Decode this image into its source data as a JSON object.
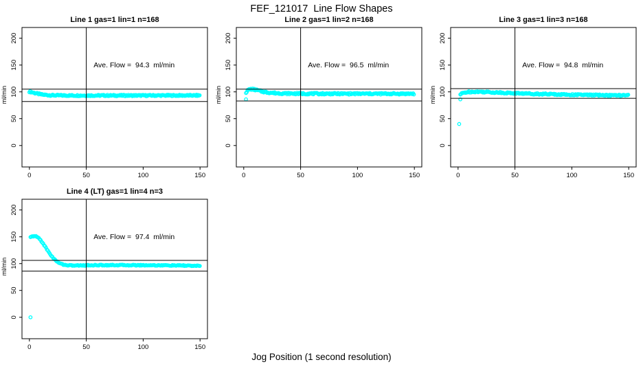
{
  "page": {
    "title": "FEF_121017  Line Flow Shapes",
    "xlabel": "Jog Position (1 second resolution)"
  },
  "colors": {
    "marker": "#00FFFF",
    "axis": "#000000",
    "background": "#FFFFFF"
  },
  "chart_data": [
    {
      "type": "scatter",
      "title": "Line 1 gas=1 lin=1 n=168",
      "annotation": "Ave. Flow =  94.3  ml/min",
      "ave_flow_ml_min": 94.3,
      "ylabel": "ml/min",
      "xticks": [
        0,
        50,
        100,
        150
      ],
      "yticks": [
        0,
        50,
        100,
        150,
        200
      ],
      "axis_range_x": [
        0,
        150
      ],
      "axis_range_y": [
        0,
        200
      ],
      "ref_hlines": [
        105,
        82
      ],
      "ref_vline": 50,
      "series": [
        {
          "name": "flow-band",
          "spread": 1.3,
          "step": 0.68,
          "points": [
            [
              0,
              100.5
            ],
            [
              1,
              100
            ],
            [
              2,
              99.5
            ],
            [
              3,
              99
            ],
            [
              4,
              98.3
            ],
            [
              5,
              97.7
            ],
            [
              6,
              97.2
            ],
            [
              8,
              96.2
            ],
            [
              10,
              95.3
            ],
            [
              12,
              94.7
            ],
            [
              15,
              94.2
            ],
            [
              18,
              93.8
            ],
            [
              20,
              93.6
            ],
            [
              25,
              93.4
            ],
            [
              30,
              93.3
            ],
            [
              40,
              93.2
            ],
            [
              60,
              93.2
            ],
            [
              80,
              93.2
            ],
            [
              100,
              93.2
            ],
            [
              120,
              93.3
            ],
            [
              150,
              93.3
            ]
          ]
        }
      ],
      "outliers": []
    },
    {
      "type": "scatter",
      "title": "Line 2 gas=1 lin=2 n=168",
      "annotation": "Ave. Flow =  96.5  ml/min",
      "ave_flow_ml_min": 96.5,
      "ylabel": "ml/min",
      "xticks": [
        0,
        50,
        100,
        150
      ],
      "yticks": [
        0,
        50,
        100,
        150,
        200
      ],
      "axis_range_x": [
        0,
        150
      ],
      "axis_range_y": [
        0,
        200
      ],
      "ref_hlines": [
        105,
        83
      ],
      "ref_vline": 50,
      "series": [
        {
          "name": "flow-band",
          "spread": 1.5,
          "step": 0.68,
          "points": [
            [
              2,
              99
            ],
            [
              3,
              101.5
            ],
            [
              4,
              103.5
            ],
            [
              5,
              104.5
            ],
            [
              6,
              105
            ],
            [
              7,
              105
            ],
            [
              8,
              104.8
            ],
            [
              10,
              104
            ],
            [
              12,
              103
            ],
            [
              14,
              101.8
            ],
            [
              16,
              100.8
            ],
            [
              18,
              100
            ],
            [
              20,
              99.2
            ],
            [
              24,
              98.3
            ],
            [
              28,
              97.7
            ],
            [
              32,
              97.3
            ],
            [
              40,
              96.9
            ],
            [
              50,
              96.7
            ],
            [
              60,
              96.6
            ],
            [
              80,
              96.5
            ],
            [
              100,
              96.5
            ],
            [
              120,
              96.5
            ],
            [
              150,
              96.4
            ]
          ]
        }
      ],
      "outliers": [
        [
          2,
          86
        ]
      ]
    },
    {
      "type": "scatter",
      "title": "Line 3 gas=1 lin=3 n=168",
      "annotation": "Ave. Flow =  94.8  ml/min",
      "ave_flow_ml_min": 94.8,
      "ylabel": "ml/min",
      "xticks": [
        0,
        50,
        100,
        150
      ],
      "yticks": [
        0,
        50,
        100,
        150,
        200
      ],
      "axis_range_x": [
        0,
        150
      ],
      "axis_range_y": [
        0,
        200
      ],
      "ref_hlines": [
        106,
        88
      ],
      "ref_vline": 50,
      "series": [
        {
          "name": "flow-band",
          "spread": 1.4,
          "step": 0.68,
          "points": [
            [
              2,
              95
            ],
            [
              3,
              96.5
            ],
            [
              4,
              97.5
            ],
            [
              5,
              98.2
            ],
            [
              6,
              98.8
            ],
            [
              8,
              99.5
            ],
            [
              10,
              100
            ],
            [
              14,
              100.3
            ],
            [
              18,
              100.2
            ],
            [
              22,
              100
            ],
            [
              26,
              99.6
            ],
            [
              30,
              99.2
            ],
            [
              40,
              98.3
            ],
            [
              50,
              97.5
            ],
            [
              60,
              96.8
            ],
            [
              70,
              96.2
            ],
            [
              80,
              95.7
            ],
            [
              90,
              95.2
            ],
            [
              100,
              94.7
            ],
            [
              110,
              94.3
            ],
            [
              120,
              94
            ],
            [
              130,
              93.7
            ],
            [
              140,
              93.4
            ],
            [
              150,
              93.2
            ]
          ]
        }
      ],
      "outliers": [
        [
          1,
          40
        ],
        [
          2,
          86
        ]
      ]
    },
    {
      "type": "scatter",
      "title": "Line 4 (LT) gas=1 lin=4 n=3",
      "annotation": "Ave. Flow =  97.4  ml/min",
      "ave_flow_ml_min": 97.4,
      "ylabel": "ml/min",
      "xticks": [
        0,
        50,
        100,
        150
      ],
      "yticks": [
        0,
        50,
        100,
        150,
        200
      ],
      "axis_range_x": [
        0,
        150
      ],
      "axis_range_y": [
        0,
        200
      ],
      "ref_hlines": [
        106,
        86
      ],
      "ref_vline": 50,
      "series": [
        {
          "name": "flow-band",
          "spread": 0.9,
          "step": 0.8,
          "points": [
            [
              1,
              149
            ],
            [
              2,
              150
            ],
            [
              3,
              151
            ],
            [
              4,
              151.5
            ],
            [
              5,
              151
            ],
            [
              6,
              150.5
            ],
            [
              7,
              149.5
            ],
            [
              8,
              148
            ],
            [
              9,
              146
            ],
            [
              10,
              143.5
            ],
            [
              11,
              140.5
            ],
            [
              12,
              137.5
            ],
            [
              13,
              134.5
            ],
            [
              14,
              131
            ],
            [
              15,
              128
            ],
            [
              16,
              124.5
            ],
            [
              17,
              121.5
            ],
            [
              18,
              118.5
            ],
            [
              19,
              115.5
            ],
            [
              20,
              113
            ],
            [
              21,
              110.5
            ],
            [
              22,
              108
            ],
            [
              23,
              106
            ],
            [
              24,
              104.3
            ],
            [
              25,
              102.8
            ],
            [
              26,
              101.5
            ],
            [
              27,
              100.4
            ],
            [
              28,
              99.5
            ],
            [
              29,
              98.8
            ],
            [
              30,
              98.2
            ],
            [
              32,
              97.4
            ],
            [
              34,
              96.9
            ],
            [
              36,
              96.6
            ],
            [
              40,
              96.4
            ],
            [
              45,
              96.5
            ],
            [
              50,
              96.8
            ],
            [
              55,
              97
            ],
            [
              60,
              97.1
            ],
            [
              70,
              97.2
            ],
            [
              80,
              97.2
            ],
            [
              90,
              97.1
            ],
            [
              100,
              97
            ],
            [
              110,
              96.9
            ],
            [
              120,
              96.7
            ],
            [
              130,
              96.5
            ],
            [
              140,
              96.2
            ],
            [
              150,
              95.5
            ]
          ]
        }
      ],
      "outliers": [
        [
          1,
          0
        ]
      ]
    }
  ]
}
